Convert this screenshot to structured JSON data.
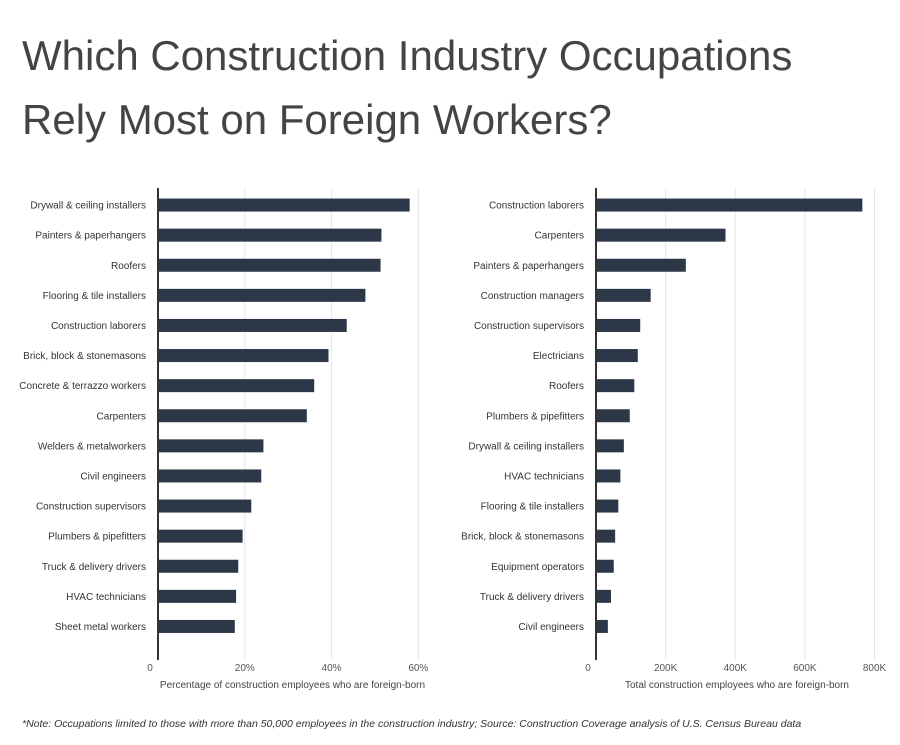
{
  "title": "Which Construction Industry Occupations Rely Most on Foreign Workers?",
  "note": "*Note: Occupations limited to those with more than 50,000 employees in the construction industry;  Source: Construction Coverage analysis of U.S. Census Bureau data",
  "colors": {
    "bar": "#2c3748",
    "grid": "#e6e6e6",
    "axis": "#333333"
  },
  "chart_data": [
    {
      "type": "bar",
      "orientation": "horizontal",
      "categories": [
        "Drywall & ceiling installers",
        "Painters & paperhangers",
        "Roofers",
        "Flooring & tile installers",
        "Construction laborers",
        "Brick, block & stonemasons",
        "Concrete & terrazzo workers",
        "Carpenters",
        "Welders & metalworkers",
        "Civil engineers",
        "Construction supervisors",
        "Plumbers & pipefitters",
        "Truck & delivery drivers",
        "HVAC technicians",
        "Sheet metal workers"
      ],
      "values": [
        58,
        51.5,
        51.3,
        47.8,
        43.5,
        39.3,
        36,
        34.3,
        24.3,
        23.8,
        21.5,
        19.5,
        18.5,
        18,
        17.7
      ],
      "xlim": [
        0,
        62
      ],
      "ticks": [
        0,
        20,
        40,
        60
      ],
      "tick_labels": [
        "0",
        "20%",
        "40%",
        "60%"
      ],
      "xlabel": "Percentage of construction employees who are foreign-born",
      "grid": true
    },
    {
      "type": "bar",
      "orientation": "horizontal",
      "categories": [
        "Construction laborers",
        "Carpenters",
        "Painters & paperhangers",
        "Construction managers",
        "Construction supervisors",
        "Electricians",
        "Roofers",
        "Plumbers & pipefitters",
        "Drywall & ceiling installers",
        "HVAC technicians",
        "Flooring & tile installers",
        "Brick, block & stonemasons",
        "Equipment operators",
        "Truck & delivery drivers",
        "Civil engineers"
      ],
      "values": [
        765000,
        372000,
        258000,
        157000,
        127000,
        120000,
        110000,
        97000,
        80000,
        70000,
        64000,
        55000,
        51000,
        43000,
        34000
      ],
      "xlim": [
        0,
        810000
      ],
      "ticks": [
        0,
        200000,
        400000,
        600000,
        800000
      ],
      "tick_labels": [
        "0",
        "200K",
        "400K",
        "600K",
        "800K"
      ],
      "xlabel": "Total construction employees who are foreign-born",
      "grid": true
    }
  ]
}
